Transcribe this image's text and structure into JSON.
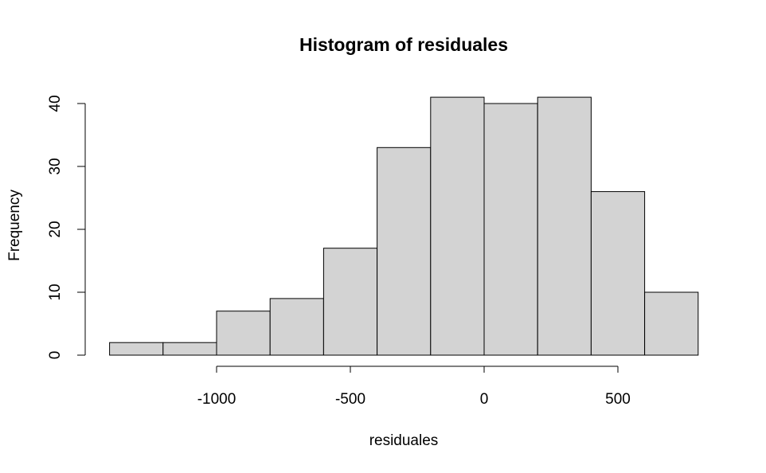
{
  "chart_data": {
    "type": "bar",
    "title": "Histogram of residuales",
    "xlabel": "residuales",
    "ylabel": "Frequency",
    "bins": [
      {
        "start": -1400,
        "end": -1200,
        "count": 2
      },
      {
        "start": -1200,
        "end": -1000,
        "count": 2
      },
      {
        "start": -1000,
        "end": -800,
        "count": 7
      },
      {
        "start": -800,
        "end": -600,
        "count": 9
      },
      {
        "start": -600,
        "end": -400,
        "count": 17
      },
      {
        "start": -400,
        "end": -200,
        "count": 33
      },
      {
        "start": -200,
        "end": 0,
        "count": 41
      },
      {
        "start": 0,
        "end": 200,
        "count": 40
      },
      {
        "start": 200,
        "end": 400,
        "count": 41
      },
      {
        "start": 400,
        "end": 600,
        "count": 26
      },
      {
        "start": 600,
        "end": 800,
        "count": 10
      }
    ],
    "x_ticks": [
      -1000,
      -500,
      0,
      500
    ],
    "x_tick_labels": [
      "-1000",
      "-500",
      "0",
      "500"
    ],
    "y_ticks": [
      0,
      10,
      20,
      30,
      40
    ],
    "y_tick_labels": [
      "0",
      "10",
      "20",
      "30",
      "40"
    ],
    "xlim": [
      -1400,
      800
    ],
    "ylim": [
      0,
      41
    ],
    "grid": false,
    "bar_color": "#d3d3d3",
    "edge_color": "#000000"
  }
}
